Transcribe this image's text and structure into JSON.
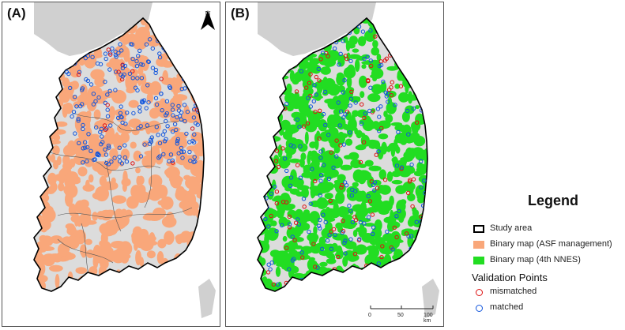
{
  "panel_a": {
    "label": "(A)"
  },
  "panel_b": {
    "label": "(B)"
  },
  "north_arrow": {
    "label": "N"
  },
  "scale_bar": {
    "ticks": [
      "0",
      "50",
      "100 km"
    ]
  },
  "legend": {
    "title": "Legend",
    "items": [
      {
        "label": "Study area"
      },
      {
        "label": "Binary map (ASF management)"
      },
      {
        "label": "Binary map (4th NNES)"
      }
    ],
    "validation_title": "Validation Points",
    "points": [
      {
        "label": "mismatched"
      },
      {
        "label": "matched"
      }
    ]
  },
  "colors": {
    "study_area_outline": "#000000",
    "asf_management": "#f9a77a",
    "nnes_4th": "#22dd22",
    "mismatched": "#dd1111",
    "matched": "#1155dd",
    "land_background": "#dcdcdc",
    "outside_land": "#d0d0d0"
  },
  "icons": [
    "north-arrow-icon"
  ]
}
